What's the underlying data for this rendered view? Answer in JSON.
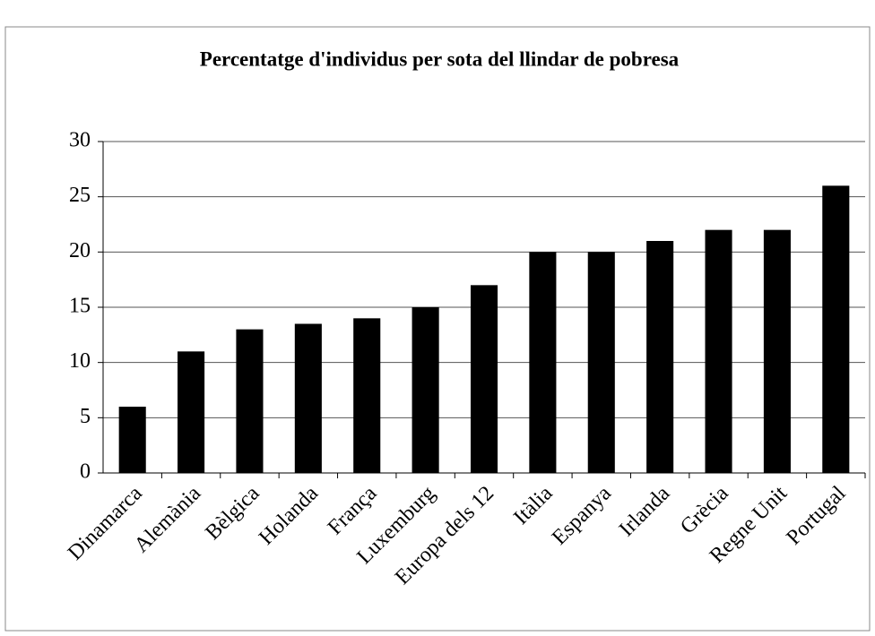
{
  "chart_data": {
    "type": "bar",
    "title": "Percentatge d'individus per sota del llindar de pobresa",
    "categories": [
      "Dinamarca",
      "Alemània",
      "Bèlgica",
      "Holanda",
      "França",
      "Luxemburg",
      "Europa dels 12",
      "Itàlia",
      "Espanya",
      "Irlanda",
      "Grècia",
      "Regne Unit",
      "Portugal"
    ],
    "values": [
      6,
      11,
      13,
      13.5,
      14,
      15,
      17,
      20,
      20,
      21,
      22,
      22,
      26
    ],
    "color": "#000000",
    "ylim": [
      0,
      30
    ],
    "yticks": [
      0,
      5,
      10,
      15,
      20,
      25,
      30
    ],
    "grid": true
  }
}
